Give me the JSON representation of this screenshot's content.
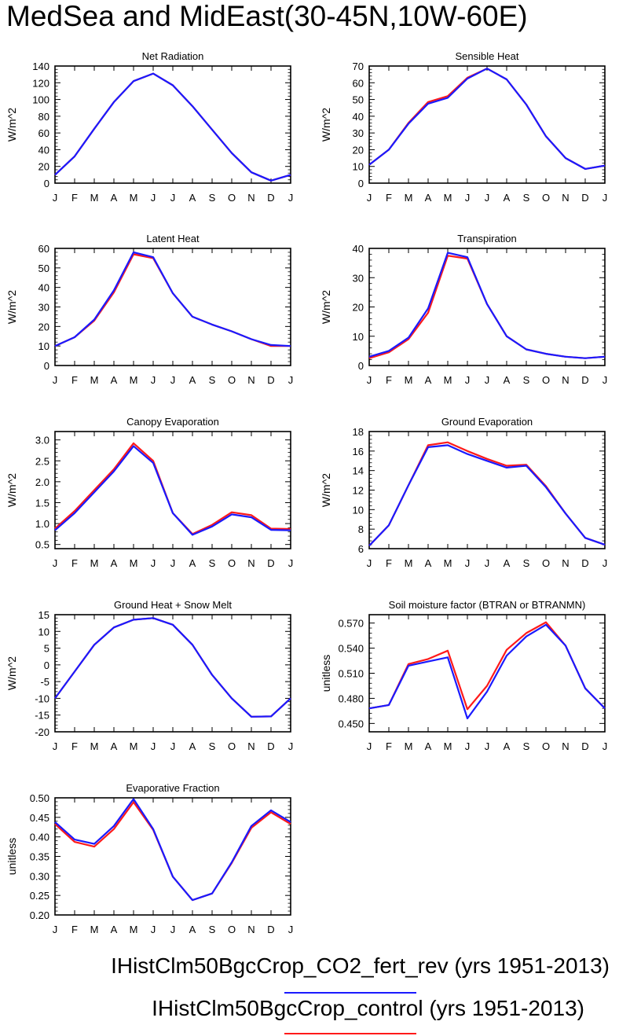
{
  "title": "MedSea and MidEast(30-45N,10W-60E)",
  "legend": [
    {
      "label": "IHistClm50BgcCrop_CO2_fert_rev (yrs 1951-2013)",
      "color": "#1a1aff"
    },
    {
      "label": "IHistClm50BgcCrop_control (yrs 1951-2013)",
      "color": "#ff1a1a"
    }
  ],
  "colors": {
    "blue": "#1a1aff",
    "red": "#ff1a1a"
  },
  "chart_data": [
    {
      "type": "line",
      "title": "Net Radiation",
      "ylabel": "W/m^2",
      "categories": [
        "J",
        "F",
        "M",
        "A",
        "M",
        "J",
        "J",
        "A",
        "S",
        "O",
        "N",
        "D",
        "J"
      ],
      "ylim": [
        0,
        140
      ],
      "yticks": [
        "0",
        "20",
        "40",
        "60",
        "80",
        "100",
        "120",
        "140"
      ],
      "series": [
        {
          "color": "#ff1a1a",
          "values": [
            10,
            32,
            65,
            97,
            122,
            131,
            117,
            92,
            64,
            36,
            13,
            3,
            10
          ]
        },
        {
          "color": "#1a1aff",
          "values": [
            10,
            32,
            65,
            97,
            122,
            131,
            117,
            92,
            64,
            36,
            13,
            3,
            10
          ]
        }
      ]
    },
    {
      "type": "line",
      "title": "Sensible Heat",
      "ylabel": "W/m^2",
      "categories": [
        "J",
        "F",
        "M",
        "A",
        "M",
        "J",
        "J",
        "A",
        "S",
        "O",
        "N",
        "D",
        "J"
      ],
      "ylim": [
        0,
        70
      ],
      "yticks": [
        "0",
        "10",
        "20",
        "30",
        "40",
        "50",
        "60",
        "70"
      ],
      "series": [
        {
          "color": "#ff1a1a",
          "values": [
            11,
            20,
            36,
            48.5,
            52,
            63,
            68.5,
            62,
            47,
            28,
            15,
            8.5,
            10.5
          ]
        },
        {
          "color": "#1a1aff",
          "values": [
            11,
            20,
            35.5,
            47.5,
            51,
            62.5,
            68.5,
            62,
            47,
            28,
            15,
            8.5,
            10.5
          ]
        }
      ]
    },
    {
      "type": "line",
      "title": "Latent Heat",
      "ylabel": "W/m^2",
      "categories": [
        "J",
        "F",
        "M",
        "A",
        "M",
        "J",
        "J",
        "A",
        "S",
        "O",
        "N",
        "D",
        "J"
      ],
      "ylim": [
        0,
        60
      ],
      "yticks": [
        "0",
        "10",
        "20",
        "30",
        "40",
        "50",
        "60"
      ],
      "series": [
        {
          "color": "#ff1a1a",
          "values": [
            10,
            14.5,
            23,
            37.5,
            57,
            55,
            37,
            25,
            21,
            17.5,
            13.5,
            10,
            10
          ]
        },
        {
          "color": "#1a1aff",
          "values": [
            10,
            14.5,
            23.5,
            38.5,
            58,
            55.5,
            37,
            25,
            21,
            17.5,
            13.5,
            10.5,
            10
          ]
        }
      ]
    },
    {
      "type": "line",
      "title": "Transpiration",
      "ylabel": "W/m^2",
      "categories": [
        "J",
        "F",
        "M",
        "A",
        "M",
        "J",
        "J",
        "A",
        "S",
        "O",
        "N",
        "D",
        "J"
      ],
      "ylim": [
        0,
        40
      ],
      "yticks": [
        "0",
        "10",
        "20",
        "30",
        "40"
      ],
      "series": [
        {
          "color": "#ff1a1a",
          "values": [
            2.5,
            4.5,
            9,
            18,
            37.5,
            36.5,
            21,
            10,
            5.5,
            4,
            3,
            2.5,
            3
          ]
        },
        {
          "color": "#1a1aff",
          "values": [
            3,
            5,
            9.5,
            19.5,
            38.5,
            37,
            21,
            10,
            5.5,
            4,
            3,
            2.5,
            3
          ]
        }
      ]
    },
    {
      "type": "line",
      "title": "Canopy Evaporation",
      "ylabel": "W/m^2",
      "categories": [
        "J",
        "F",
        "M",
        "A",
        "M",
        "J",
        "J",
        "A",
        "S",
        "O",
        "N",
        "D",
        "J"
      ],
      "ylim": [
        0.4,
        3.2
      ],
      "yticks": [
        "0.5",
        "1.0",
        "1.5",
        "2.0",
        "2.5",
        "3.0"
      ],
      "ytick_values": [
        0.5,
        1.0,
        1.5,
        2.0,
        2.5,
        3.0
      ],
      "series": [
        {
          "color": "#ff1a1a",
          "values": [
            0.88,
            1.3,
            1.8,
            2.3,
            2.92,
            2.5,
            1.25,
            0.75,
            0.97,
            1.27,
            1.2,
            0.88,
            0.87
          ]
        },
        {
          "color": "#1a1aff",
          "values": [
            0.84,
            1.25,
            1.75,
            2.25,
            2.85,
            2.45,
            1.25,
            0.73,
            0.93,
            1.22,
            1.15,
            0.85,
            0.84
          ]
        }
      ]
    },
    {
      "type": "line",
      "title": "Ground Evaporation",
      "ylabel": "W/m^2",
      "categories": [
        "J",
        "F",
        "M",
        "A",
        "M",
        "J",
        "J",
        "A",
        "S",
        "O",
        "N",
        "D",
        "J"
      ],
      "ylim": [
        6,
        18
      ],
      "yticks": [
        "6",
        "8",
        "10",
        "12",
        "14",
        "16",
        "18"
      ],
      "series": [
        {
          "color": "#ff1a1a",
          "values": [
            6.3,
            8.4,
            12.5,
            16.6,
            16.9,
            16.0,
            15.2,
            14.5,
            14.6,
            12.4,
            9.6,
            7.1,
            6.4
          ]
        },
        {
          "color": "#1a1aff",
          "values": [
            6.3,
            8.4,
            12.5,
            16.4,
            16.6,
            15.7,
            15.0,
            14.3,
            14.5,
            12.3,
            9.6,
            7.1,
            6.4
          ]
        }
      ]
    },
    {
      "type": "line",
      "title": "Ground Heat + Snow Melt",
      "ylabel": "W/m^2",
      "categories": [
        "J",
        "F",
        "M",
        "A",
        "M",
        "J",
        "J",
        "A",
        "S",
        "O",
        "N",
        "D",
        "J"
      ],
      "ylim": [
        -20,
        15
      ],
      "yticks": [
        "-20",
        "-15",
        "-10",
        "-5",
        "0",
        "5",
        "10",
        "15"
      ],
      "ytick_values": [
        -20,
        -15,
        -10,
        -5,
        0,
        5,
        10,
        15
      ],
      "series": [
        {
          "color": "#ff1a1a",
          "values": [
            -10,
            -2,
            6,
            11.2,
            13.5,
            14,
            12,
            6,
            -3,
            -10,
            -15.5,
            -15.4,
            -10
          ]
        },
        {
          "color": "#1a1aff",
          "values": [
            -10,
            -2,
            6,
            11.2,
            13.5,
            14,
            12,
            6,
            -3,
            -10,
            -15.5,
            -15.4,
            -10
          ]
        }
      ]
    },
    {
      "type": "line",
      "title": "Soil moisture factor (BTRAN or BTRANMN)",
      "ylabel": "unitless",
      "categories": [
        "J",
        "F",
        "M",
        "A",
        "M",
        "J",
        "J",
        "A",
        "S",
        "O",
        "N",
        "D",
        "J"
      ],
      "ylim": [
        0.44,
        0.58
      ],
      "yticks": [
        "0.450",
        "0.480",
        "0.510",
        "0.540",
        "0.570"
      ],
      "ytick_values": [
        0.45,
        0.48,
        0.51,
        0.54,
        0.57
      ],
      "series": [
        {
          "color": "#ff1a1a",
          "values": [
            0.468,
            0.472,
            0.521,
            0.527,
            0.537,
            0.467,
            0.495,
            0.538,
            0.558,
            0.571,
            0.543,
            0.492,
            0.468
          ]
        },
        {
          "color": "#1a1aff",
          "values": [
            0.468,
            0.472,
            0.519,
            0.524,
            0.529,
            0.456,
            0.488,
            0.531,
            0.554,
            0.568,
            0.543,
            0.492,
            0.468
          ]
        }
      ]
    },
    {
      "type": "line",
      "title": "Evaporative Fraction",
      "ylabel": "unitless",
      "categories": [
        "J",
        "F",
        "M",
        "A",
        "M",
        "J",
        "J",
        "A",
        "S",
        "O",
        "N",
        "D",
        "J"
      ],
      "ylim": [
        0.2,
        0.5
      ],
      "yticks": [
        "0.20",
        "0.25",
        "0.30",
        "0.35",
        "0.40",
        "0.45",
        "0.50"
      ],
      "ytick_values": [
        0.2,
        0.25,
        0.3,
        0.35,
        0.4,
        0.45,
        0.5
      ],
      "series": [
        {
          "color": "#ff1a1a",
          "values": [
            0.433,
            0.387,
            0.375,
            0.42,
            0.489,
            0.418,
            0.298,
            0.238,
            0.255,
            0.333,
            0.423,
            0.463,
            0.433
          ]
        },
        {
          "color": "#1a1aff",
          "values": [
            0.438,
            0.393,
            0.382,
            0.428,
            0.497,
            0.42,
            0.298,
            0.238,
            0.255,
            0.335,
            0.428,
            0.468,
            0.438
          ]
        }
      ]
    }
  ]
}
